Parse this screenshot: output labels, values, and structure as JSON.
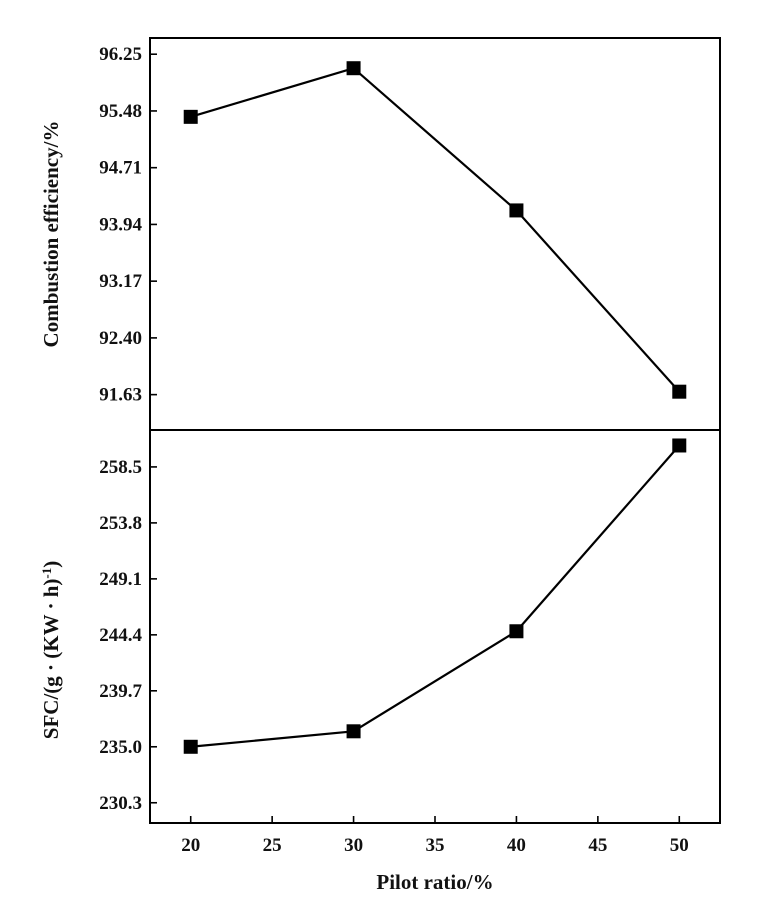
{
  "chart_data": [
    {
      "type": "line",
      "xlabel": "",
      "ylabel": "Combustion efficiency/%",
      "x": [
        20,
        30,
        40,
        50
      ],
      "series": [
        {
          "values": [
            95.4,
            96.06,
            94.13,
            91.67
          ]
        }
      ],
      "yticks": [
        "96.25",
        "95.48",
        "94.71",
        "93.94",
        "93.17",
        "92.40",
        "91.63"
      ],
      "ylim": [
        91.15,
        96.47
      ],
      "xlim": [
        17.5,
        52.5
      ],
      "grid": false,
      "marker": "square",
      "color": "#000000"
    },
    {
      "type": "line",
      "xlabel": "Pilot ratio/%",
      "ylabel": "SFC/(g · (KW · h)",
      "ylabel_superscript": "-1",
      "ylabel_close": ")",
      "x": [
        20,
        30,
        40,
        50
      ],
      "series": [
        {
          "values": [
            235.0,
            236.3,
            244.7,
            260.3
          ]
        }
      ],
      "xticks": [
        "20",
        "25",
        "30",
        "35",
        "40",
        "45",
        "50"
      ],
      "yticks": [
        "258.5",
        "253.8",
        "249.1",
        "244.4",
        "239.7",
        "235.0",
        "230.3"
      ],
      "ylim": [
        228.6,
        261.6
      ],
      "xlim": [
        17.5,
        52.5
      ],
      "grid": false,
      "marker": "square",
      "color": "#000000"
    }
  ]
}
